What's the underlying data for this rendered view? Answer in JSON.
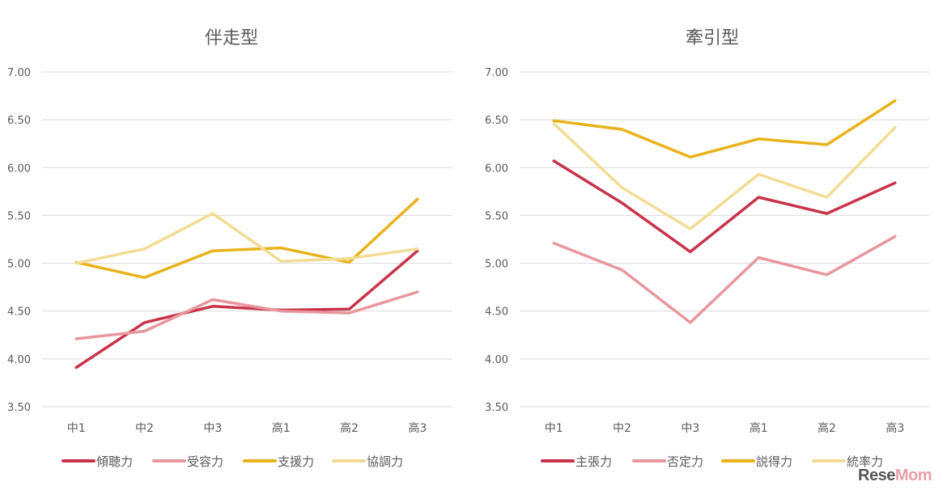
{
  "chart_data": [
    {
      "type": "line",
      "title": "伴走型",
      "categories": [
        "中1",
        "中2",
        "中3",
        "高1",
        "高2",
        "高3"
      ],
      "yticks": [
        "3.50",
        "4.00",
        "4.50",
        "5.00",
        "5.50",
        "6.00",
        "6.50",
        "7.00"
      ],
      "ylim": [
        3.5,
        7.0
      ],
      "xlabel": "",
      "ylabel": "",
      "legend_position": "bottom",
      "series": [
        {
          "name": "傾聴力",
          "color": "#c8334a",
          "values": [
            3.91,
            4.38,
            4.55,
            4.51,
            4.52,
            5.13
          ]
        },
        {
          "name": "受容力",
          "color": "#e8969e",
          "values": [
            4.21,
            4.29,
            4.62,
            4.5,
            4.48,
            4.7
          ]
        },
        {
          "name": "支援力",
          "color": "#e8b21a",
          "values": [
            5.01,
            4.85,
            5.13,
            5.16,
            5.01,
            5.67
          ]
        },
        {
          "name": "協調力",
          "color": "#f2dc94",
          "values": [
            5.0,
            5.15,
            5.52,
            5.02,
            5.05,
            5.15
          ]
        }
      ]
    },
    {
      "type": "line",
      "title": "牽引型",
      "categories": [
        "中1",
        "中2",
        "中3",
        "高1",
        "高2",
        "高3"
      ],
      "yticks": [
        "3.50",
        "4.00",
        "4.50",
        "5.00",
        "5.50",
        "6.00",
        "6.50",
        "7.00"
      ],
      "ylim": [
        3.5,
        7.0
      ],
      "xlabel": "",
      "ylabel": "",
      "legend_position": "bottom",
      "series": [
        {
          "name": "主張力",
          "color": "#c8334a",
          "values": [
            6.07,
            5.63,
            5.12,
            5.69,
            5.52,
            5.84
          ]
        },
        {
          "name": "否定力",
          "color": "#e8969e",
          "values": [
            5.21,
            4.93,
            4.38,
            5.06,
            4.88,
            5.28
          ]
        },
        {
          "name": "説得力",
          "color": "#e8b21a",
          "values": [
            6.49,
            6.4,
            6.11,
            6.3,
            6.24,
            6.7
          ]
        },
        {
          "name": "統率力",
          "color": "#f2dc94",
          "values": [
            6.46,
            5.79,
            5.36,
            5.93,
            5.69,
            6.42
          ]
        }
      ]
    }
  ],
  "watermark": {
    "text_a": "Rese",
    "text_b": "Mom"
  }
}
